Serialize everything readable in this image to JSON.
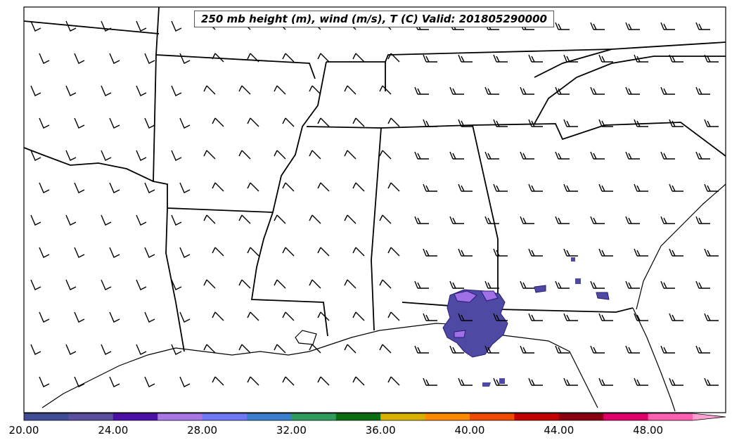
{
  "title": "250 mb height (m), wind (m/s), T (C) Valid: 201805290000",
  "colorbar": {
    "ticks": [
      "20.00",
      "24.00",
      "28.00",
      "32.00",
      "36.00",
      "40.00",
      "44.00",
      "48.00"
    ],
    "colors": [
      "#3f4d97",
      "#5b4fa0",
      "#4a10a8",
      "#a976e6",
      "#6f78f5",
      "#3d7fcf",
      "#2f9b5c",
      "#0c6e12",
      "#d8b000",
      "#ff8a00",
      "#f04a00",
      "#c40000",
      "#8a0010",
      "#e0006a",
      "#ff5fb0",
      "#ff9fd2"
    ]
  },
  "features": {
    "coastline-color": "#000000",
    "temperature-blob-colors": [
      "#4e4aa3",
      "#a070e6",
      "#2a1a7a"
    ]
  }
}
